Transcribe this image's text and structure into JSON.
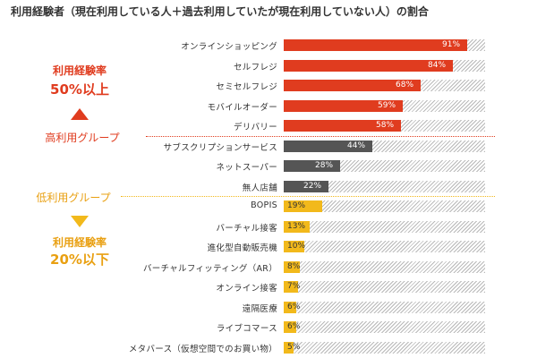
{
  "title": "利用経験者（現在利用している人＋過去利用していたが現在利用していない人）の割合",
  "left_panel": {
    "high_rate_label": "利用経験率",
    "high_rate_value": "50%以上",
    "high_group_label": "高利用グループ",
    "low_group_label": "低利用グループ",
    "low_rate_label": "利用経験率",
    "low_rate_value": "20%以下"
  },
  "colors": {
    "high": "#e03c1f",
    "mid": "#555555",
    "low": "#f2b91b",
    "hatch": "#b9b9b9"
  },
  "chart_data": {
    "type": "bar",
    "orientation": "horizontal",
    "title": "利用経験者（現在利用している人＋過去利用していたが現在利用していない人）の割合",
    "xlim": [
      0,
      100
    ],
    "unit": "%",
    "categories": [
      "オンラインショッピング",
      "セルフレジ",
      "セミセルフレジ",
      "モバイルオーダー",
      "デリバリー",
      "サブスクリプションサービス",
      "ネットスーパー",
      "無人店舗",
      "BOPIS",
      "バーチャル接客",
      "進化型自動販売機",
      "バーチャルフィッティング（AR）",
      "オンライン接客",
      "遠隔医療",
      "ライブコマース",
      "メタバース（仮想空間でのお買い物）"
    ],
    "values": [
      91,
      84,
      68,
      59,
      58,
      44,
      28,
      22,
      19,
      13,
      10,
      8,
      7,
      6,
      6,
      5
    ],
    "value_labels": [
      "91%",
      "84%",
      "68%",
      "59%",
      "58%",
      "44%",
      "28%",
      "22%",
      "19%",
      "13%",
      "10%",
      "8%",
      "7%",
      "6%",
      "6%",
      "5%"
    ],
    "groups": [
      "high",
      "high",
      "high",
      "high",
      "high",
      "mid",
      "mid",
      "mid",
      "low",
      "low",
      "low",
      "low",
      "low",
      "low",
      "low",
      "low"
    ]
  }
}
